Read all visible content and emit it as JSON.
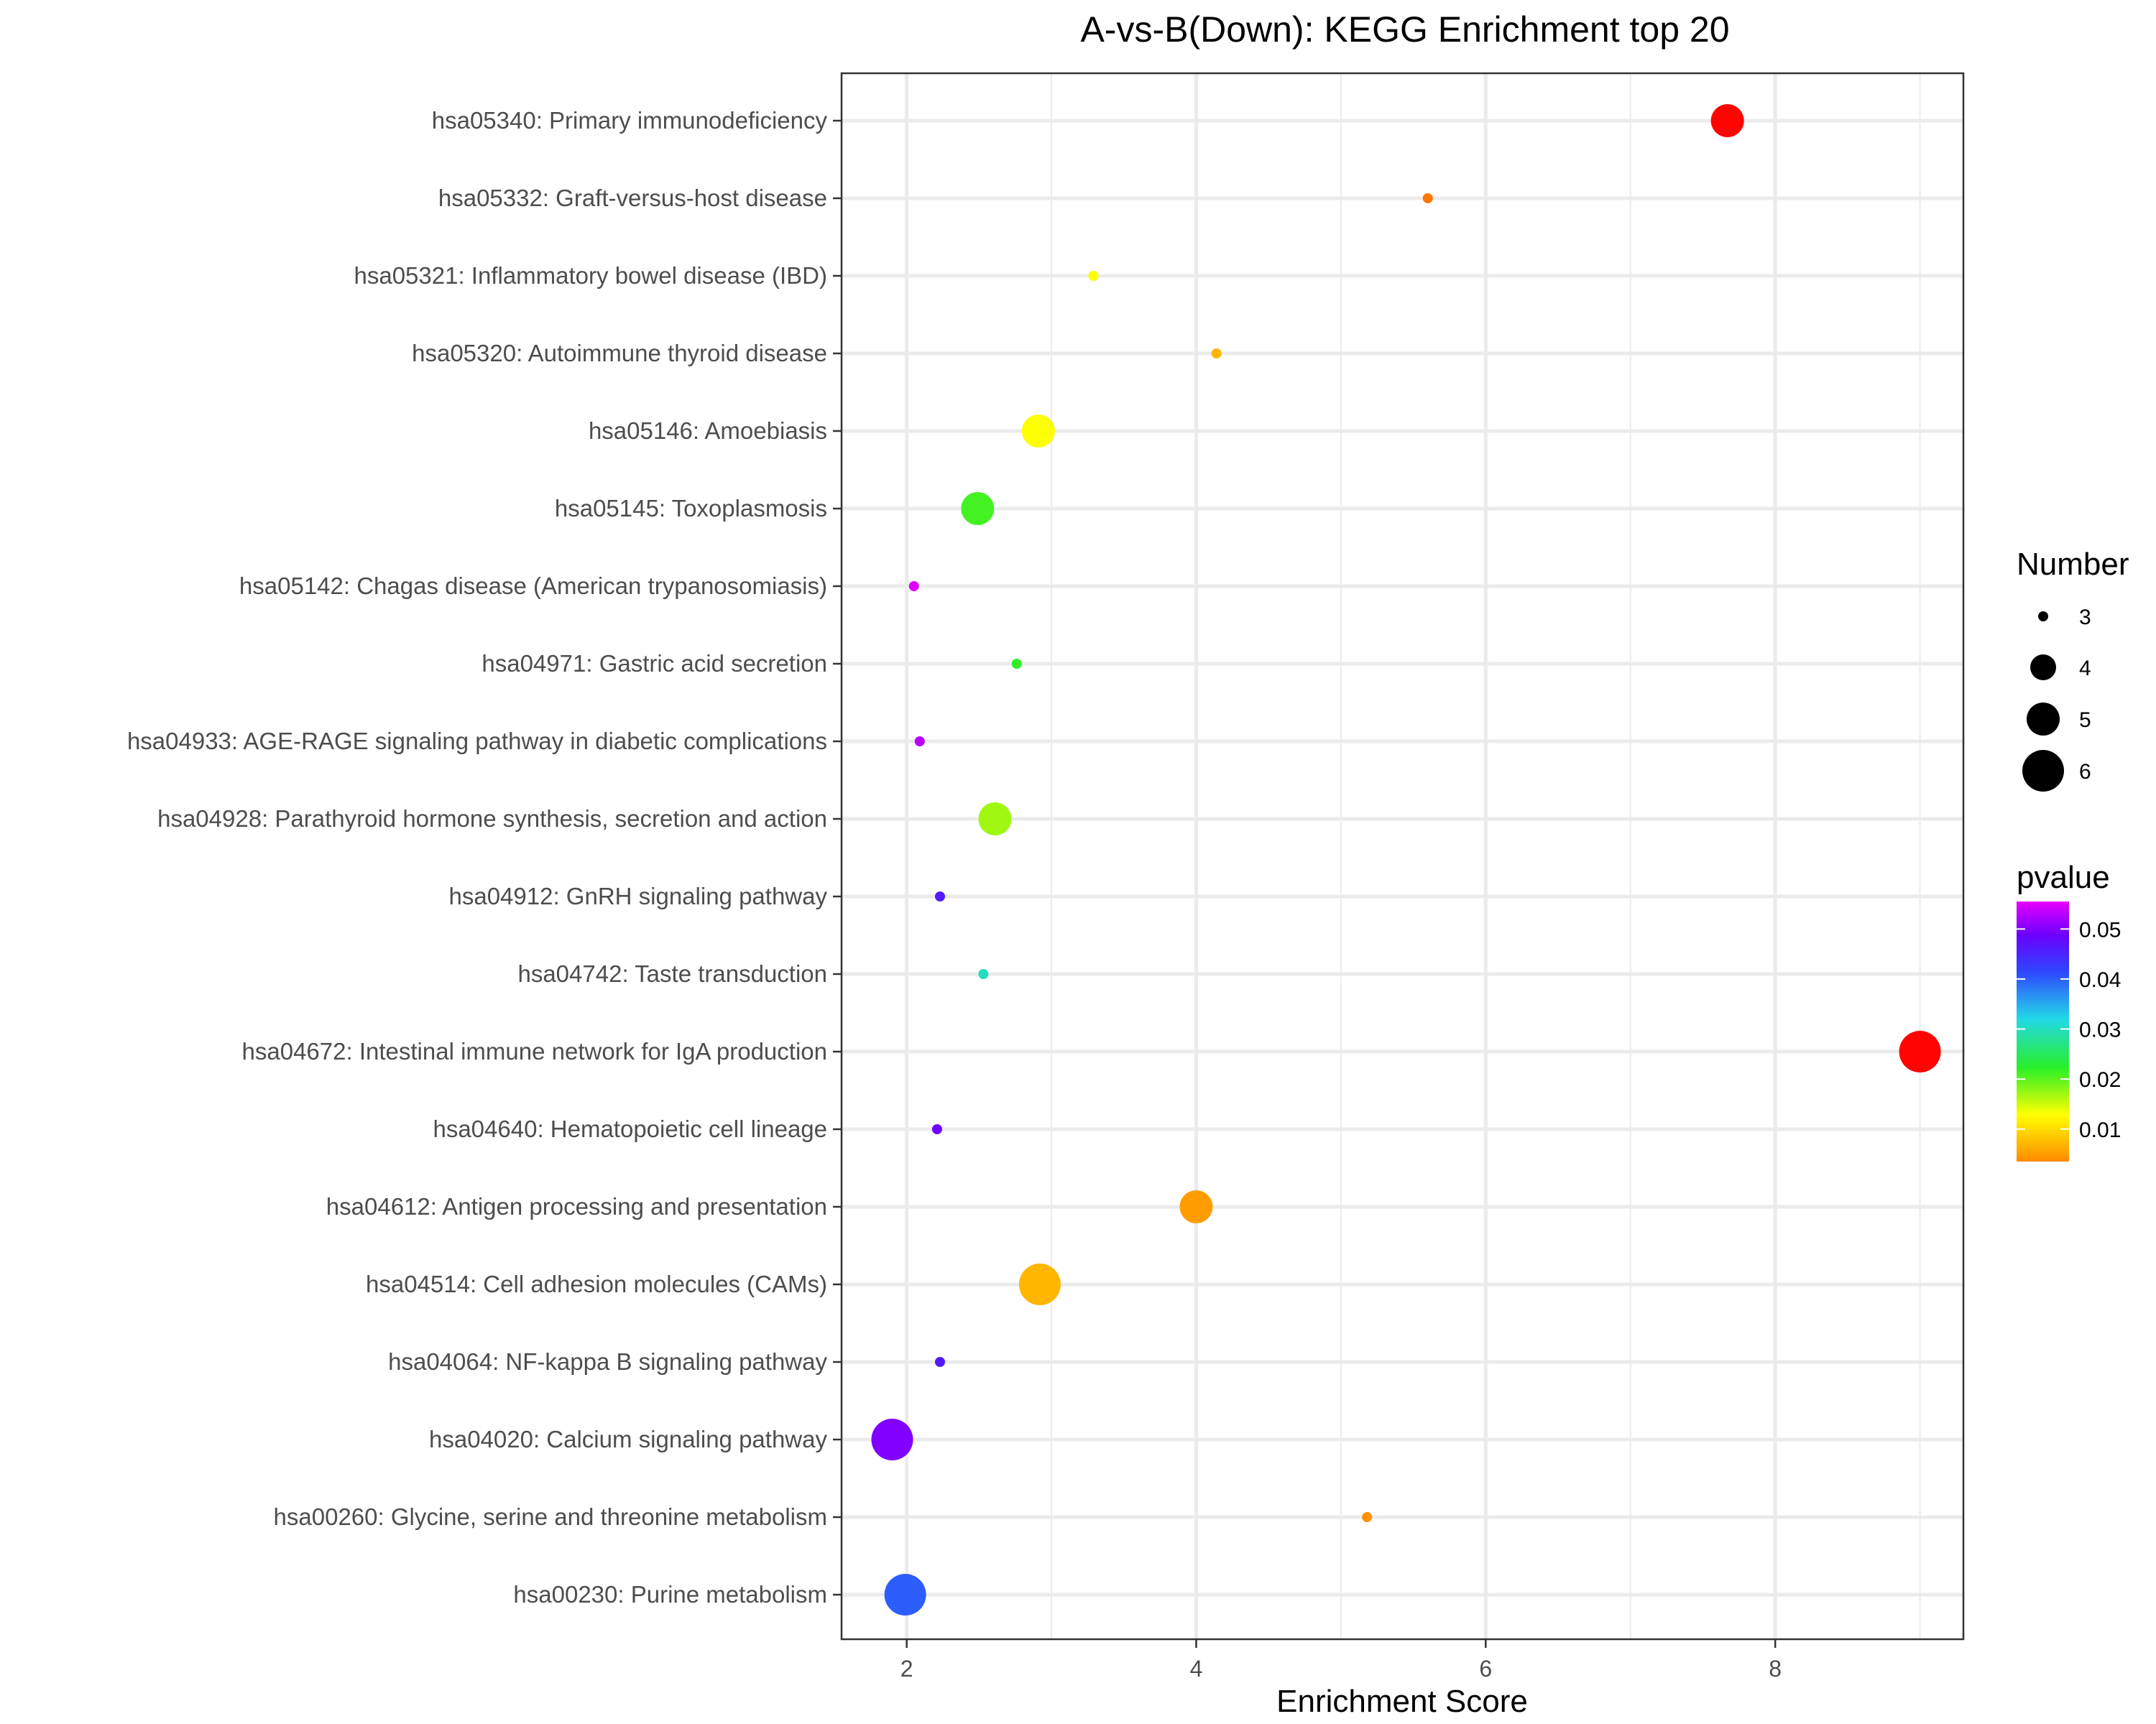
{
  "chart_data": {
    "type": "scatter",
    "title": "A-vs-B(Down): KEGG Enrichment top 20",
    "xlabel": "Enrichment Score",
    "ylabel": "",
    "xlim": [
      1.55,
      9.3
    ],
    "x_ticks": [
      "2",
      "4",
      "6",
      "8"
    ],
    "grid": true,
    "legend_placement": "right",
    "categories": [
      "hsa05340: Primary immunodeficiency",
      "hsa05332: Graft-versus-host disease",
      "hsa05321: Inflammatory bowel disease (IBD)",
      "hsa05320: Autoimmune thyroid disease",
      "hsa05146: Amoebiasis",
      "hsa05145: Toxoplasmosis",
      "hsa05142: Chagas disease (American trypanosomiasis)",
      "hsa04971: Gastric acid secretion",
      "hsa04933: AGE-RAGE signaling pathway in diabetic complications",
      "hsa04928: Parathyroid hormone synthesis, secretion and action",
      "hsa04912: GnRH signaling pathway",
      "hsa04742: Taste transduction",
      "hsa04672: Intestinal immune network for IgA production",
      "hsa04640: Hematopoietic cell lineage",
      "hsa04612: Antigen processing and presentation",
      "hsa04514: Cell adhesion molecules (CAMs)",
      "hsa04064: NF-kappa B signaling pathway",
      "hsa04020: Calcium signaling pathway",
      "hsa00260: Glycine, serine and threonine metabolism",
      "hsa00230: Purine metabolism"
    ],
    "points": [
      {
        "x": 7.67,
        "number": 5,
        "pvalue": 0.0001
      },
      {
        "x": 5.6,
        "number": 3,
        "pvalue": 0.003
      },
      {
        "x": 3.29,
        "number": 3,
        "pvalue": 0.013
      },
      {
        "x": 4.14,
        "number": 3,
        "pvalue": 0.007
      },
      {
        "x": 2.91,
        "number": 5,
        "pvalue": 0.013
      },
      {
        "x": 2.49,
        "number": 5,
        "pvalue": 0.021
      },
      {
        "x": 2.05,
        "number": 3,
        "pvalue": 0.055
      },
      {
        "x": 2.76,
        "number": 3,
        "pvalue": 0.022
      },
      {
        "x": 2.09,
        "number": 3,
        "pvalue": 0.053
      },
      {
        "x": 2.61,
        "number": 5,
        "pvalue": 0.017
      },
      {
        "x": 2.23,
        "number": 3,
        "pvalue": 0.046
      },
      {
        "x": 2.53,
        "number": 3,
        "pvalue": 0.03
      },
      {
        "x": 9.0,
        "number": 6,
        "pvalue": 0.0001
      },
      {
        "x": 2.21,
        "number": 3,
        "pvalue": 0.049
      },
      {
        "x": 4.0,
        "number": 5,
        "pvalue": 0.005
      },
      {
        "x": 2.92,
        "number": 6,
        "pvalue": 0.007
      },
      {
        "x": 2.23,
        "number": 3,
        "pvalue": 0.046
      },
      {
        "x": 1.9,
        "number": 6,
        "pvalue": 0.05
      },
      {
        "x": 5.18,
        "number": 3,
        "pvalue": 0.004
      },
      {
        "x": 1.99,
        "number": 6,
        "pvalue": 0.04
      }
    ],
    "size_legend": {
      "title": "Number",
      "levels": [
        3,
        4,
        5,
        6
      ],
      "labels": [
        "3",
        "4",
        "5",
        "6"
      ]
    },
    "color_legend": {
      "title": "pvalue",
      "range": [
        0.0035,
        0.0555
      ],
      "ticks": [
        0.05,
        0.04,
        0.03,
        0.02,
        0.01
      ],
      "tick_labels": [
        "0.05",
        "0.04",
        "0.03",
        "0.02",
        "0.01"
      ]
    }
  }
}
